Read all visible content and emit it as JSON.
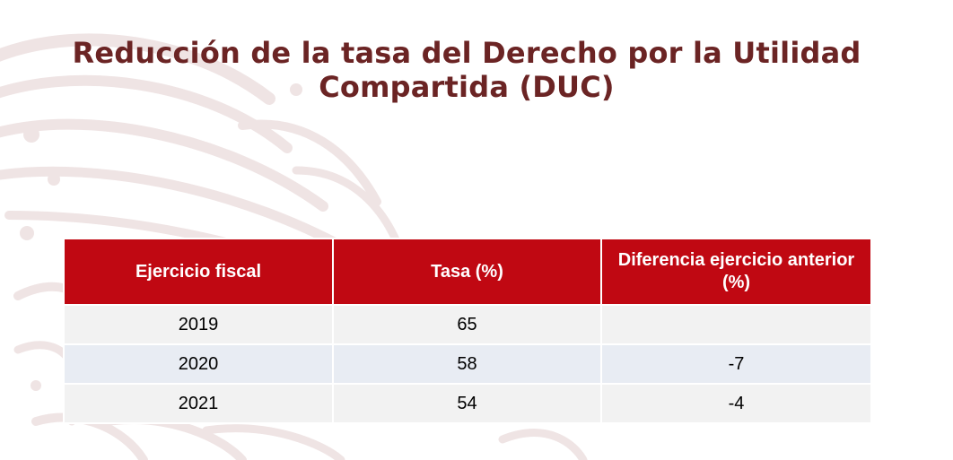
{
  "title": "Reducción de la tasa del Derecho por la Utilidad Compartida (DUC)",
  "watermark": {
    "icon": "eagle-emblem-icon",
    "color": "#efe4e4"
  },
  "colors": {
    "title": "#6b2424",
    "header_bg": "#c00812",
    "header_text": "#ffffff",
    "row_odd": "#f2f2f2",
    "row_even": "#e8ecf3"
  },
  "table": {
    "headers": [
      "Ejercicio fiscal",
      "Tasa (%)",
      "Diferencia ejercicio anterior (%)"
    ],
    "rows": [
      [
        "2019",
        "65",
        ""
      ],
      [
        "2020",
        "58",
        "-7"
      ],
      [
        "2021",
        "54",
        "-4"
      ]
    ]
  }
}
